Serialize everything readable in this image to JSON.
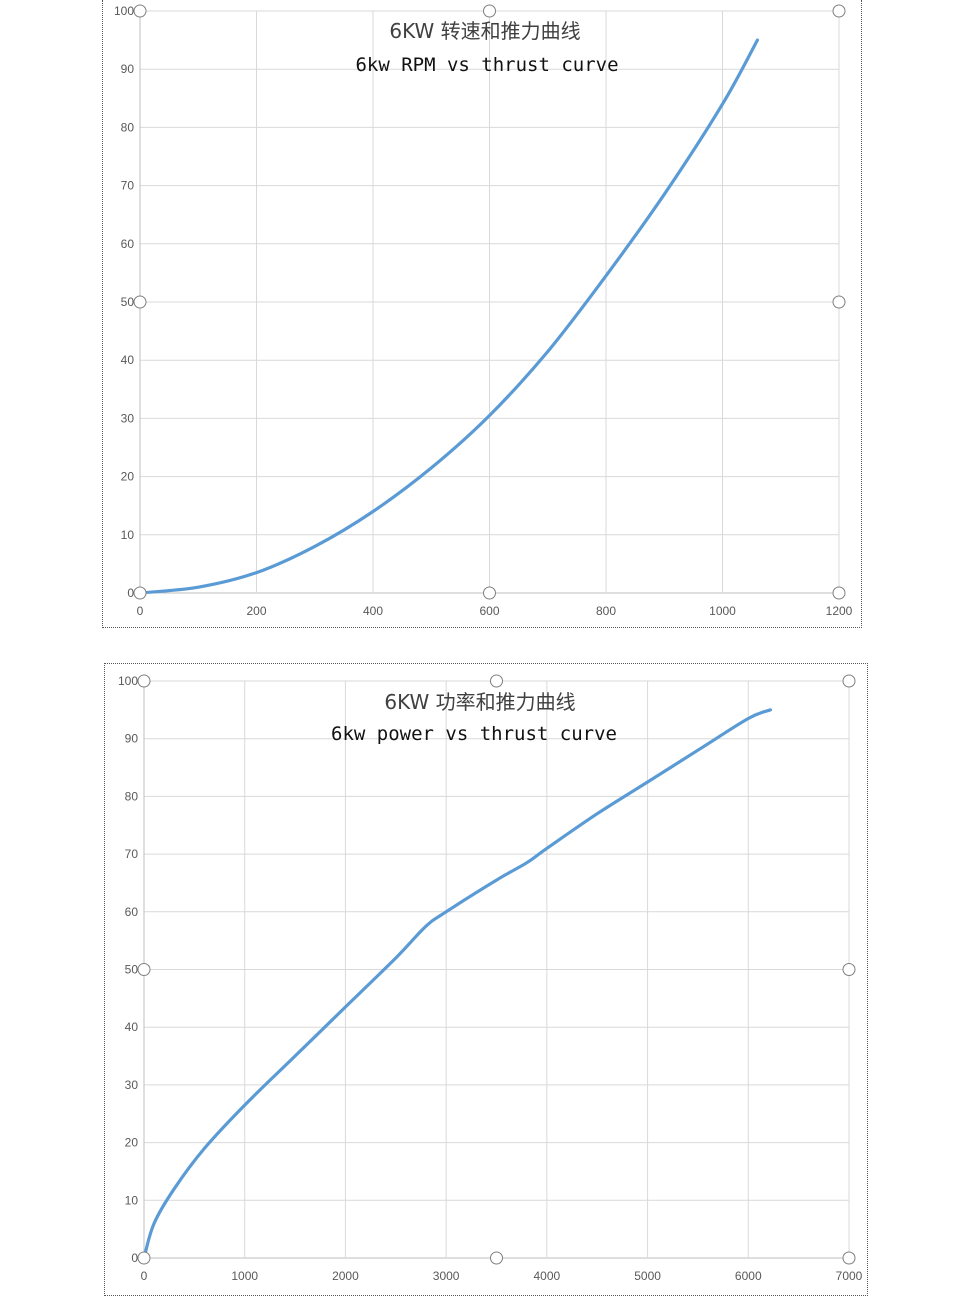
{
  "chart_data": [
    {
      "type": "line",
      "title": "6KW 转速和推力曲线",
      "subtitle": "6kw RPM vs thrust curve",
      "xlabel": "",
      "ylabel": "",
      "xlim": [
        0,
        1200
      ],
      "ylim": [
        0,
        100
      ],
      "x_ticks": [
        "0",
        "200",
        "400",
        "600",
        "800",
        "1000",
        "1200"
      ],
      "y_ticks": [
        "0",
        "10",
        "20",
        "30",
        "40",
        "50",
        "60",
        "70",
        "80",
        "90",
        "100"
      ],
      "grid": true,
      "legend": "none",
      "series_color": "#5b9bd5",
      "series": [
        {
          "x": [
            0,
            100,
            200,
            300,
            400,
            500,
            600,
            700,
            800,
            900,
            1000,
            1060
          ],
          "y": [
            0,
            1,
            3.5,
            8,
            14,
            21.5,
            30.5,
            41.5,
            54.5,
            68.5,
            84,
            95
          ]
        }
      ]
    },
    {
      "type": "line",
      "title": "6KW 功率和推力曲线",
      "subtitle": "6kw power vs thrust curve",
      "xlabel": "",
      "ylabel": "",
      "xlim": [
        0,
        7000
      ],
      "ylim": [
        0,
        100
      ],
      "x_ticks": [
        "0",
        "1000",
        "2000",
        "3000",
        "4000",
        "5000",
        "6000",
        "7000"
      ],
      "y_ticks": [
        "0",
        "10",
        "20",
        "30",
        "40",
        "50",
        "60",
        "70",
        "80",
        "90",
        "100"
      ],
      "grid": true,
      "legend": "none",
      "series_color": "#5b9bd5",
      "series": [
        {
          "x": [
            0,
            100,
            300,
            600,
            1000,
            1500,
            2000,
            2500,
            2800,
            3000,
            3500,
            3800,
            4000,
            4500,
            5000,
            5500,
            6000,
            6220
          ],
          "y": [
            0,
            6,
            12,
            19,
            26.5,
            35,
            43.5,
            52,
            57.5,
            60,
            65.5,
            68.5,
            71,
            77,
            82.5,
            88,
            93.5,
            95
          ]
        }
      ]
    }
  ]
}
